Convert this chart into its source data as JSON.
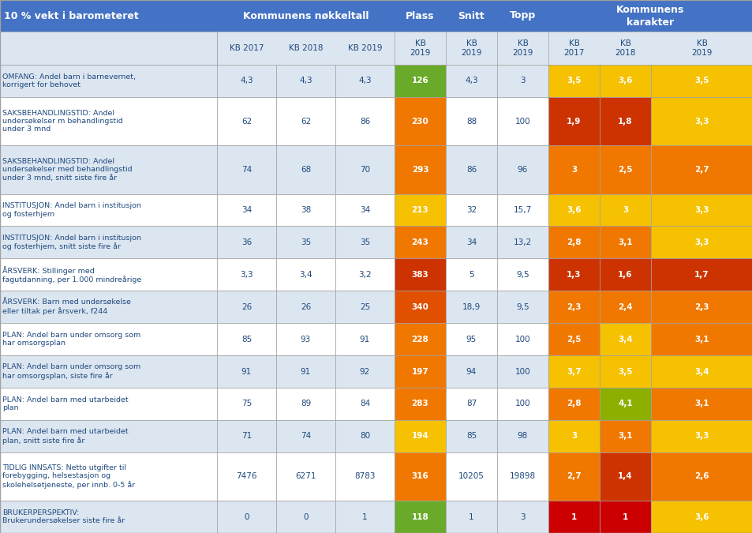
{
  "header1": "10 % vekt i barometeret",
  "header2": "Kommunens nøkkeltall",
  "header3": "Plass",
  "header4": "Snitt",
  "header5": "Topp",
  "header6": "Kommunens\nkarakter",
  "subheaders": [
    "KB 2017",
    "KB 2018",
    "KB 2019",
    "KB\n2019",
    "KB\n2019",
    "KB\n2019",
    "KB\n2017",
    "KB\n2018",
    "KB\n2019"
  ],
  "rows": [
    {
      "label": "OMFANG: Andel barn i barnevernet,\nkorrigert for behovet",
      "vals": [
        "4,3",
        "4,3",
        "4,3",
        "126",
        "4,3",
        "3",
        "3,5",
        "3,6",
        "3,5"
      ],
      "colors": [
        "",
        "",
        "",
        "green",
        "",
        "",
        "yellow",
        "yellow",
        "yellow"
      ]
    },
    {
      "label": "SAKSBEHANDLINGSTID: Andel\nundersøkelser m behandlingstid\nunder 3 mnd",
      "vals": [
        "62",
        "62",
        "86",
        "230",
        "88",
        "100",
        "1,9",
        "1,8",
        "3,3"
      ],
      "colors": [
        "",
        "",
        "",
        "orange",
        "",
        "",
        "red_dark",
        "red_dark",
        "yellow"
      ]
    },
    {
      "label": "SAKSBEHANDLINGSTID: Andel\nundersøkelser med behandlingstid\nunder 3 mnd, snitt siste fire år",
      "vals": [
        "74",
        "68",
        "70",
        "293",
        "86",
        "96",
        "3",
        "2,5",
        "2,7"
      ],
      "colors": [
        "",
        "",
        "",
        "orange",
        "",
        "",
        "orange",
        "orange",
        "orange"
      ]
    },
    {
      "label": "INSTITUSJON: Andel barn i institusjon\nog fosterhjem",
      "vals": [
        "34",
        "38",
        "34",
        "213",
        "32",
        "15,7",
        "3,6",
        "3",
        "3,3"
      ],
      "colors": [
        "",
        "",
        "",
        "yellow",
        "",
        "",
        "yellow",
        "yellow",
        "yellow"
      ]
    },
    {
      "label": "INSTITUSJON: Andel barn i institusjon\nog fosterhjem, snitt siste fire år",
      "vals": [
        "36",
        "35",
        "35",
        "243",
        "34",
        "13,2",
        "2,8",
        "3,1",
        "3,3"
      ],
      "colors": [
        "",
        "",
        "",
        "orange",
        "",
        "",
        "orange",
        "orange",
        "yellow"
      ]
    },
    {
      "label": "ÅRSVERK: Stillinger med\nfagutdanning, per 1.000 mindreårige",
      "vals": [
        "3,3",
        "3,4",
        "3,2",
        "383",
        "5",
        "9,5",
        "1,3",
        "1,6",
        "1,7"
      ],
      "colors": [
        "",
        "",
        "",
        "red_dark",
        "",
        "",
        "red_dark",
        "red_dark",
        "red_dark"
      ]
    },
    {
      "label": "ÅRSVERK: Barn med undersøkelse\neller tiltak per årsverk, f244",
      "vals": [
        "26",
        "26",
        "25",
        "340",
        "18,9",
        "9,5",
        "2,3",
        "2,4",
        "2,3"
      ],
      "colors": [
        "",
        "",
        "",
        "red_orange",
        "",
        "",
        "orange",
        "orange",
        "orange"
      ]
    },
    {
      "label": "PLAN: Andel barn under omsorg som\nhar omsorgsplan",
      "vals": [
        "85",
        "93",
        "91",
        "228",
        "95",
        "100",
        "2,5",
        "3,4",
        "3,1"
      ],
      "colors": [
        "",
        "",
        "",
        "orange",
        "",
        "",
        "orange",
        "yellow",
        "orange"
      ]
    },
    {
      "label": "PLAN: Andel barn under omsorg som\nhar omsorgsplan, siste fire år",
      "vals": [
        "91",
        "91",
        "92",
        "197",
        "94",
        "100",
        "3,7",
        "3,5",
        "3,4"
      ],
      "colors": [
        "",
        "",
        "",
        "orange",
        "",
        "",
        "yellow",
        "yellow",
        "yellow"
      ]
    },
    {
      "label": "PLAN: Andel barn med utarbeidet\nplan",
      "vals": [
        "75",
        "89",
        "84",
        "283",
        "87",
        "100",
        "2,8",
        "4,1",
        "3,1"
      ],
      "colors": [
        "",
        "",
        "",
        "orange",
        "",
        "",
        "orange",
        "olive",
        "orange"
      ]
    },
    {
      "label": "PLAN: Andel barn med utarbeidet\nplan, snitt siste fire år",
      "vals": [
        "71",
        "74",
        "80",
        "194",
        "85",
        "98",
        "3",
        "3,1",
        "3,3"
      ],
      "colors": [
        "",
        "",
        "",
        "yellow",
        "",
        "",
        "yellow",
        "orange",
        "yellow"
      ]
    },
    {
      "label": "TIDLIG INNSATS: Netto utgifter til\nforebygging, helsestasjon og\nskolehelsetjeneste, per innb. 0-5 år",
      "vals": [
        "7476",
        "6271",
        "8783",
        "316",
        "10205",
        "19898",
        "2,7",
        "1,4",
        "2,6"
      ],
      "colors": [
        "",
        "",
        "",
        "orange",
        "",
        "",
        "orange",
        "red_dark",
        "orange"
      ]
    },
    {
      "label": "BRUKERPERSPEKTIV:\nBrukerundersøkelser siste fire år",
      "vals": [
        "0",
        "0",
        "1",
        "118",
        "1",
        "3",
        "1",
        "1",
        "3,6"
      ],
      "colors": [
        "",
        "",
        "",
        "green",
        "",
        "",
        "red_crimson",
        "red_crimson",
        "yellow"
      ]
    }
  ],
  "color_map": {
    "green": "#6aaa2a",
    "yellow": "#f5c100",
    "orange": "#f07800",
    "red_dark": "#cc3300",
    "red_orange": "#e05000",
    "olive": "#8db000",
    "red_crimson": "#cc0000"
  },
  "header_bg": "#4472c4",
  "header_text": "#ffffff",
  "subheader_bg": "#dce6f1",
  "row_bg_odd": "#dce6f1",
  "row_bg_even": "#ffffff",
  "label_text": "#1f497d",
  "val_text": "#1f497d"
}
